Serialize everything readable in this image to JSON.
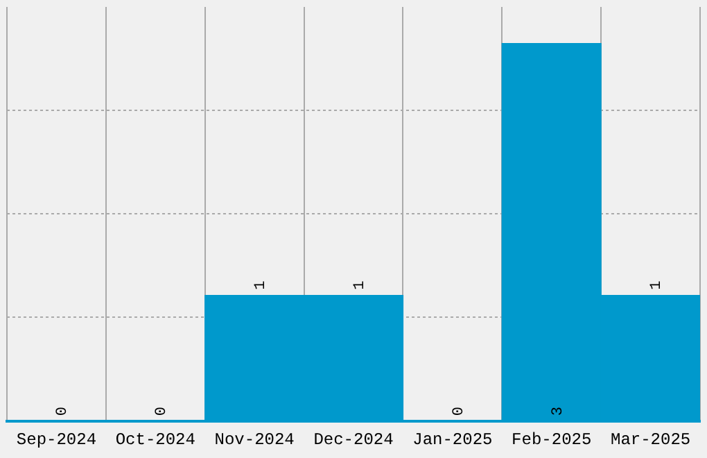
{
  "chart_data": {
    "type": "bar",
    "categories": [
      "Sep-2024",
      "Oct-2024",
      "Nov-2024",
      "Dec-2024",
      "Jan-2025",
      "Feb-2025",
      "Mar-2025"
    ],
    "values": [
      0,
      0,
      1,
      1,
      0,
      3,
      1
    ],
    "color": "#0099cc",
    "data_labels": true,
    "grid": true,
    "tick_labels": "x",
    "ylim": [
      0,
      3.29
    ],
    "yticks": [
      {
        "value": 0.83,
        "label": null
      },
      {
        "value": 1.65,
        "label": null
      },
      {
        "value": 2.47,
        "label": null
      }
    ]
  }
}
